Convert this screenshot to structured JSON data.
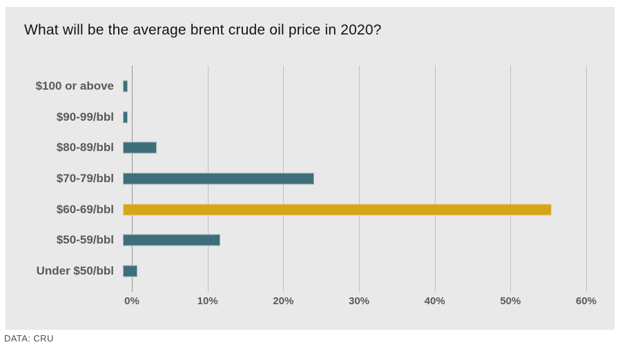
{
  "colors": {
    "page_background": "#ffffff",
    "panel_background": "#e9e9e9",
    "bar_teal": "#3d6f7a",
    "bar_gold": "#d5a51a",
    "gridline": "#bfbfbf",
    "axis_line": "#949494",
    "title_text": "#141414",
    "label_text": "#595959",
    "source_text": "#4d4d4d"
  },
  "chart_data": {
    "type": "bar",
    "orientation": "horizontal",
    "title": "What will be the average brent crude oil price in 2020?",
    "categories": [
      "$100 or above",
      "$90-99/bbl",
      "$80-89/bbl",
      "$70-79/bbl",
      "$60-69/bbl",
      "$50-59/bbl",
      "Under $50/bbl"
    ],
    "values": [
      0.6,
      0.6,
      4.4,
      24.8,
      55.5,
      12.6,
      1.9
    ],
    "value_unit": "%",
    "xlim": [
      0,
      60
    ],
    "xticks": [
      {
        "value": 0,
        "label": "0%"
      },
      {
        "value": 10,
        "label": "10%"
      },
      {
        "value": 20,
        "label": "20%"
      },
      {
        "value": 30,
        "label": "30%"
      },
      {
        "value": 40,
        "label": "40%"
      },
      {
        "value": 50,
        "label": "50%"
      },
      {
        "value": 60,
        "label": "60%"
      }
    ],
    "highlight_index": 4,
    "bar_color": "#3d6f7a",
    "highlight_color": "#d5a51a",
    "grid": true,
    "legend": "none",
    "source": "DATA: CRU"
  }
}
